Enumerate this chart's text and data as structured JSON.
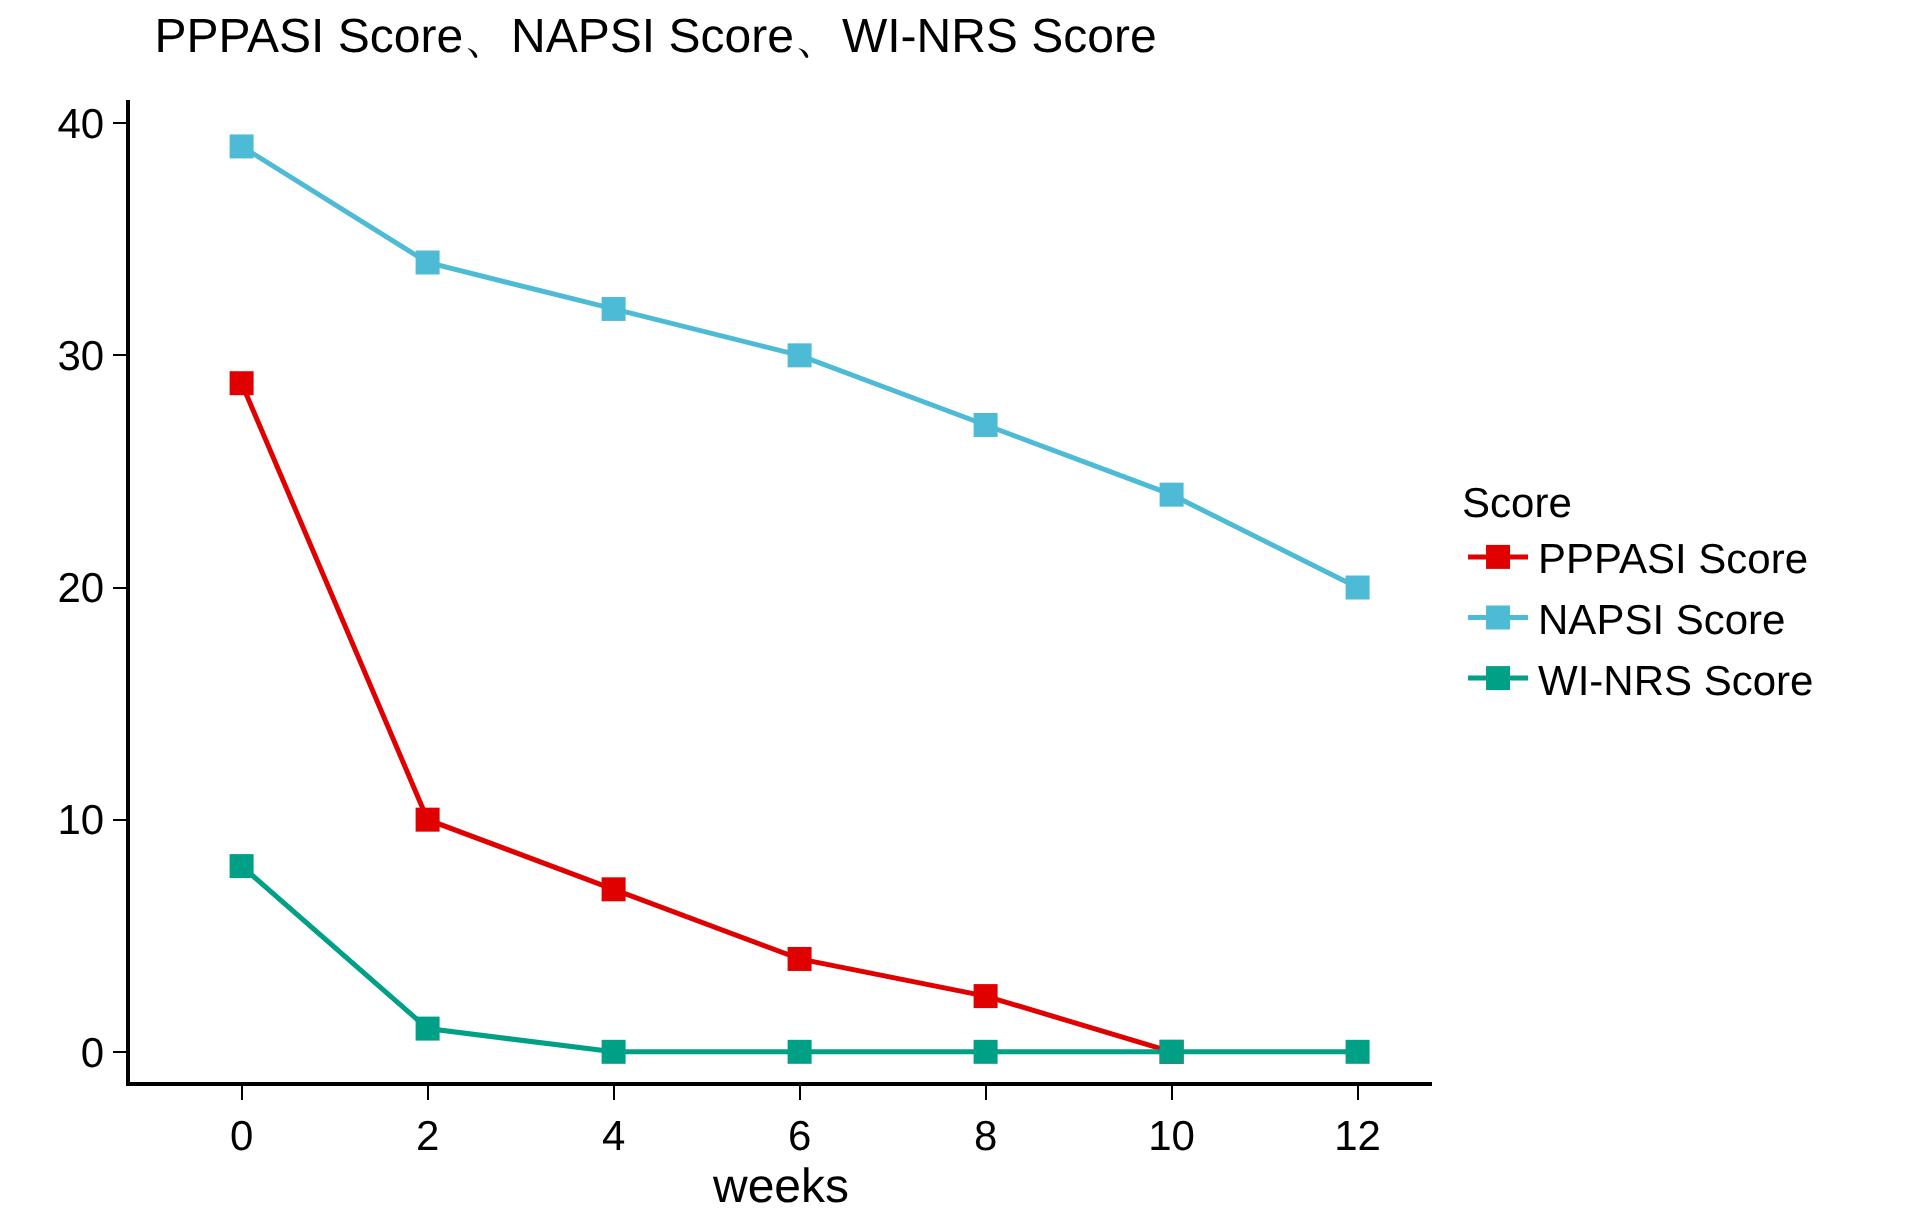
{
  "chart_data": {
    "type": "line",
    "title": "PPPASI Score、NAPSI Score、WI-NRS Score",
    "xlabel": "weeks",
    "legend_title": "Score",
    "x": [
      0,
      2,
      4,
      6,
      8,
      10,
      12
    ],
    "series": [
      {
        "name": "PPPASI Score",
        "color": "#e00000",
        "values": [
          28.8,
          10,
          7,
          4,
          2.4,
          0,
          null
        ]
      },
      {
        "name": "NAPSI Score",
        "color": "#4dbbd5",
        "values": [
          39,
          34,
          32,
          30,
          27,
          24,
          20
        ]
      },
      {
        "name": "WI-NRS Score",
        "color": "#00a087",
        "values": [
          8,
          1,
          0,
          0,
          0,
          0,
          0
        ]
      }
    ],
    "xlim": [
      -1.2,
      12.8
    ],
    "xticks": [
      0,
      2,
      4,
      6,
      8,
      10,
      12
    ],
    "ylim": [
      -1.3,
      41
    ],
    "yticks": [
      0,
      10,
      20,
      30,
      40
    ],
    "grid": false,
    "legend": "right",
    "marker": "square",
    "line_style": "solid"
  }
}
